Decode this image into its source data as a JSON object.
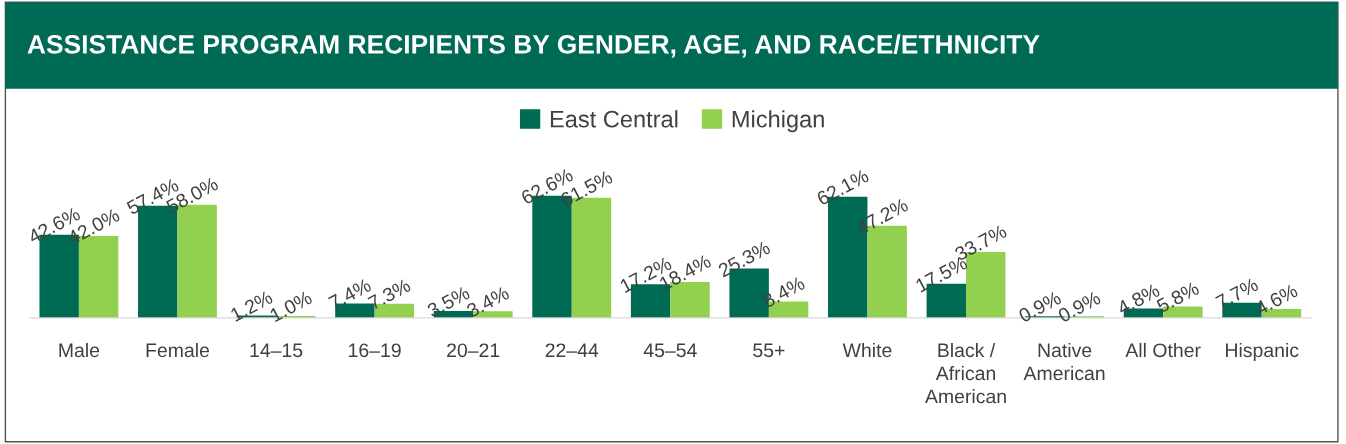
{
  "chart_data": {
    "type": "bar",
    "title": "ASSISTANCE PROGRAM RECIPIENTS BY GENDER, AGE, AND RACE/ETHNICITY",
    "categories": [
      "Male",
      "Female",
      "14–15",
      "16–19",
      "20–21",
      "22–44",
      "45–54",
      "55+",
      "White",
      "Black /\nAfrican\nAmerican",
      "Native\nAmerican",
      "All Other",
      "Hispanic"
    ],
    "series": [
      {
        "name": "East Central",
        "color": "#006b54",
        "values": [
          42.6,
          57.4,
          1.2,
          7.4,
          3.5,
          62.6,
          17.2,
          25.3,
          62.1,
          17.5,
          0.9,
          4.8,
          7.7
        ],
        "value_labels": [
          "42.6%",
          "57.4%",
          "1.2%",
          "7.4%",
          "3.5%",
          "62.6%",
          "17.2%",
          "25.3%",
          "62.1%",
          "17.5%",
          "0.9%",
          "4.8%",
          "7.7%"
        ]
      },
      {
        "name": "Michigan",
        "color": "#92d050",
        "values": [
          42.0,
          58.0,
          1.0,
          7.3,
          3.4,
          61.5,
          18.4,
          8.4,
          47.2,
          33.7,
          0.9,
          5.8,
          4.6
        ],
        "value_labels": [
          "42.0%",
          "58.0%",
          "1.0%",
          "7.3%",
          "3.4%",
          "61.5%",
          "18.4%",
          "8.4%",
          "47.2%",
          "33.7%",
          "0.9%",
          "5.8%",
          "4.6%"
        ]
      }
    ],
    "legend": "top",
    "grid": false
  }
}
